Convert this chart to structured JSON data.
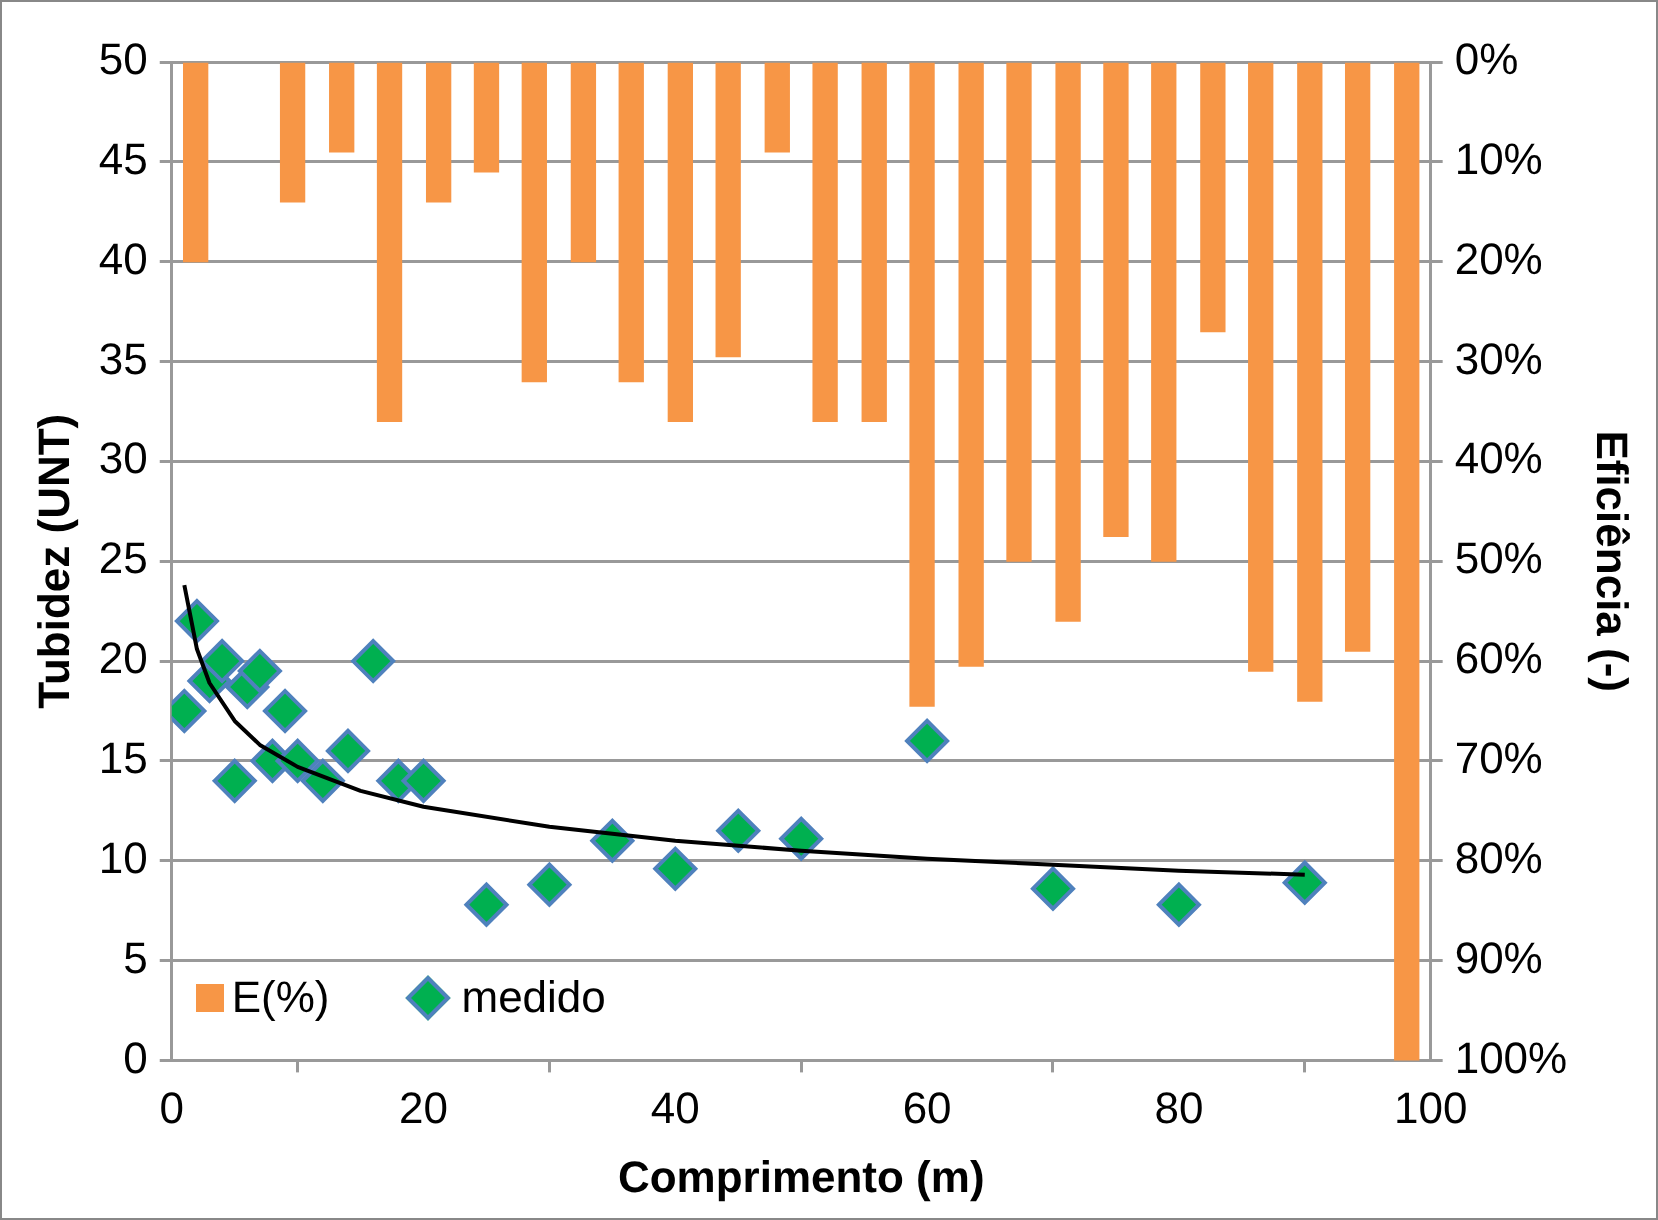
{
  "chart_data": {
    "type": "scatter",
    "xlabel": "Comprimento (m)",
    "ylabel": "Tubidez (UNT)",
    "y2label": "Eficiência (-)",
    "xlim": [
      0,
      100
    ],
    "xticks": [
      0,
      20,
      40,
      60,
      80,
      100
    ],
    "ylim": [
      0,
      50
    ],
    "yticks": [
      0,
      5,
      10,
      15,
      20,
      25,
      30,
      35,
      40,
      45,
      50
    ],
    "y2lim": [
      100,
      0
    ],
    "y2ticks": [
      {
        "value": 0,
        "label": "0%"
      },
      {
        "value": 10,
        "label": "10%"
      },
      {
        "value": 20,
        "label": "20%"
      },
      {
        "value": 30,
        "label": "30%"
      },
      {
        "value": 40,
        "label": "40%"
      },
      {
        "value": 50,
        "label": "50%"
      },
      {
        "value": 60,
        "label": "60%"
      },
      {
        "value": 70,
        "label": "70%"
      },
      {
        "value": 80,
        "label": "80%"
      },
      {
        "value": 90,
        "label": "90%"
      },
      {
        "value": 100,
        "label": "100%"
      }
    ],
    "grid": "y",
    "legend": "bottom left",
    "series": [
      {
        "name": "E(%)",
        "type": "bar",
        "axis": "y2",
        "color": "#f79646",
        "x": [
          1.9,
          9.6,
          13.5,
          17.3,
          21.2,
          25,
          28.8,
          32.7,
          36.5,
          40.4,
          44.2,
          48.1,
          51.9,
          55.8,
          59.6,
          63.5,
          67.3,
          71.2,
          75,
          78.8,
          82.7,
          86.5,
          90.4,
          94.2,
          98.1
        ],
        "values": [
          20,
          14,
          9,
          36,
          14,
          11,
          32,
          20,
          32,
          36,
          29.5,
          9,
          36,
          36,
          64.5,
          60.5,
          50,
          56,
          47.5,
          50,
          27,
          61,
          64,
          59,
          100
        ]
      },
      {
        "name": "medido",
        "type": "scatter",
        "marker": "diamond",
        "color": "#00b050",
        "x": [
          1,
          2,
          3,
          4,
          5,
          6,
          7,
          8,
          9,
          10,
          12,
          14,
          16,
          18,
          20,
          25,
          30,
          35,
          40,
          45,
          50,
          60,
          70,
          80,
          90
        ],
        "values": [
          17.5,
          22,
          19,
          20,
          14,
          18.7,
          19.5,
          15,
          17.5,
          15,
          14,
          15.5,
          20,
          14,
          14,
          7.8,
          8.8,
          11,
          9.6,
          11.5,
          11.1,
          16,
          8.6,
          7.8,
          8.9
        ]
      },
      {
        "type": "line",
        "marker": "none",
        "line_style": "solid",
        "color": "#000000",
        "x": [
          1,
          2,
          3,
          5,
          7,
          10,
          15,
          20,
          30,
          40,
          50,
          60,
          70,
          80,
          90
        ],
        "values": [
          23.8,
          20.6,
          18.9,
          17.0,
          15.8,
          14.7,
          13.5,
          12.7,
          11.7,
          11.0,
          10.5,
          10.1,
          9.8,
          9.5,
          9.3
        ]
      }
    ]
  }
}
